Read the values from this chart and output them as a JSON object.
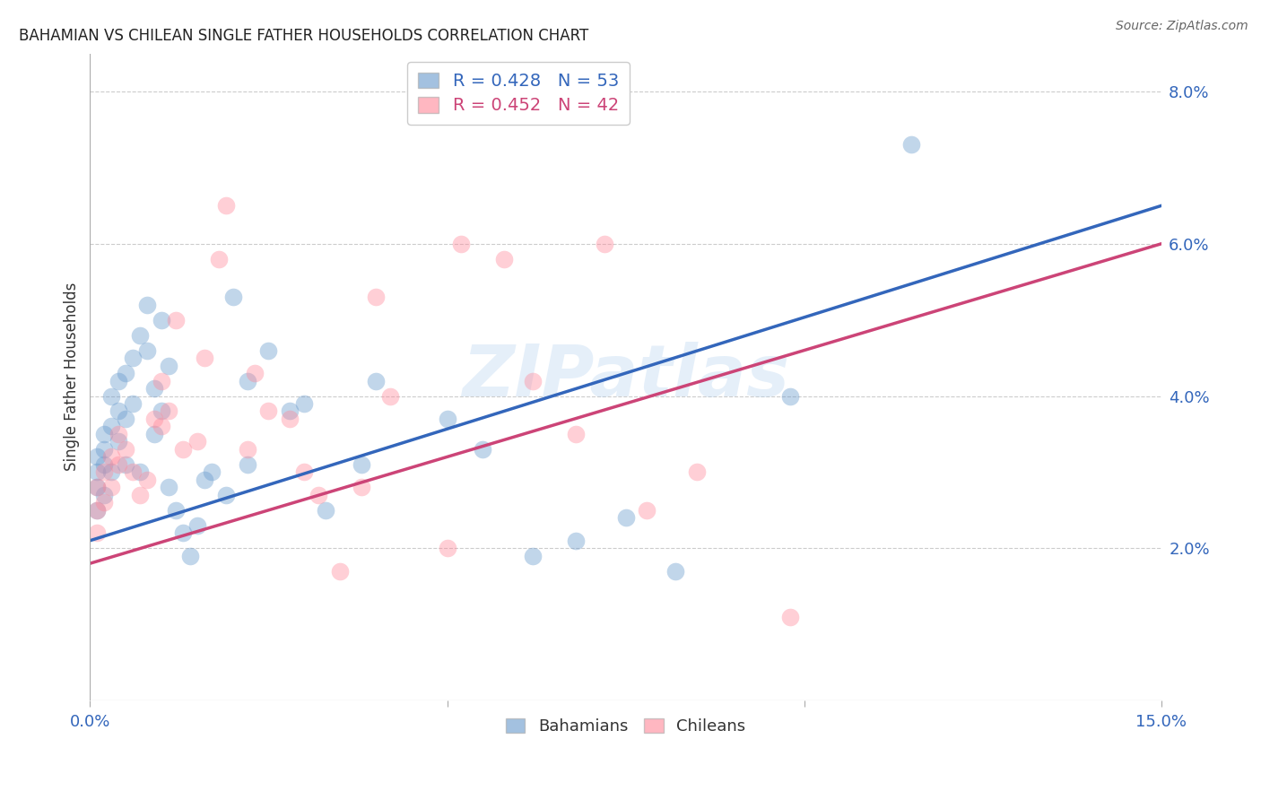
{
  "title": "BAHAMIAN VS CHILEAN SINGLE FATHER HOUSEHOLDS CORRELATION CHART",
  "source": "Source: ZipAtlas.com",
  "ylabel": "Single Father Households",
  "xlim": [
    0.0,
    0.15
  ],
  "ylim": [
    0.0,
    0.085
  ],
  "xtick_positions": [
    0.0,
    0.05,
    0.1,
    0.15
  ],
  "xtick_labels": [
    "0.0%",
    "",
    "",
    "15.0%"
  ],
  "ytick_positions": [
    0.02,
    0.04,
    0.06,
    0.08
  ],
  "ytick_labels": [
    "2.0%",
    "4.0%",
    "6.0%",
    "8.0%"
  ],
  "bahamian_R": 0.428,
  "bahamian_N": 53,
  "chilean_R": 0.452,
  "chilean_N": 42,
  "bahamian_color": "#6699CC",
  "chilean_color": "#FF8899",
  "bahamian_line_color": "#3366BB",
  "chilean_line_color": "#CC4477",
  "watermark": "ZIPatlas",
  "blue_line_x0": 0.0,
  "blue_line_y0": 0.021,
  "blue_line_x1": 0.15,
  "blue_line_y1": 0.065,
  "pink_line_x0": 0.0,
  "pink_line_y0": 0.018,
  "pink_line_x1": 0.15,
  "pink_line_y1": 0.06,
  "bahamian_x": [
    0.001,
    0.001,
    0.001,
    0.001,
    0.002,
    0.002,
    0.002,
    0.002,
    0.003,
    0.003,
    0.003,
    0.004,
    0.004,
    0.004,
    0.005,
    0.005,
    0.005,
    0.006,
    0.006,
    0.007,
    0.007,
    0.008,
    0.008,
    0.009,
    0.009,
    0.01,
    0.01,
    0.011,
    0.011,
    0.012,
    0.013,
    0.014,
    0.015,
    0.016,
    0.017,
    0.019,
    0.02,
    0.022,
    0.022,
    0.025,
    0.028,
    0.03,
    0.033,
    0.038,
    0.04,
    0.05,
    0.055,
    0.062,
    0.068,
    0.075,
    0.082,
    0.098,
    0.115
  ],
  "bahamian_y": [
    0.028,
    0.03,
    0.025,
    0.032,
    0.031,
    0.035,
    0.027,
    0.033,
    0.036,
    0.03,
    0.04,
    0.038,
    0.034,
    0.042,
    0.043,
    0.037,
    0.031,
    0.045,
    0.039,
    0.048,
    0.03,
    0.046,
    0.052,
    0.041,
    0.035,
    0.05,
    0.038,
    0.044,
    0.028,
    0.025,
    0.022,
    0.019,
    0.023,
    0.029,
    0.03,
    0.027,
    0.053,
    0.042,
    0.031,
    0.046,
    0.038,
    0.039,
    0.025,
    0.031,
    0.042,
    0.037,
    0.033,
    0.019,
    0.021,
    0.024,
    0.017,
    0.04,
    0.073
  ],
  "chilean_x": [
    0.001,
    0.001,
    0.001,
    0.002,
    0.002,
    0.003,
    0.003,
    0.004,
    0.004,
    0.005,
    0.006,
    0.007,
    0.008,
    0.009,
    0.01,
    0.01,
    0.011,
    0.012,
    0.013,
    0.015,
    0.016,
    0.018,
    0.019,
    0.022,
    0.023,
    0.025,
    0.028,
    0.03,
    0.032,
    0.035,
    0.038,
    0.04,
    0.042,
    0.05,
    0.052,
    0.058,
    0.062,
    0.068,
    0.072,
    0.078,
    0.085,
    0.098
  ],
  "chilean_y": [
    0.028,
    0.025,
    0.022,
    0.03,
    0.026,
    0.032,
    0.028,
    0.031,
    0.035,
    0.033,
    0.03,
    0.027,
    0.029,
    0.037,
    0.036,
    0.042,
    0.038,
    0.05,
    0.033,
    0.034,
    0.045,
    0.058,
    0.065,
    0.033,
    0.043,
    0.038,
    0.037,
    0.03,
    0.027,
    0.017,
    0.028,
    0.053,
    0.04,
    0.02,
    0.06,
    0.058,
    0.042,
    0.035,
    0.06,
    0.025,
    0.03,
    0.011
  ]
}
